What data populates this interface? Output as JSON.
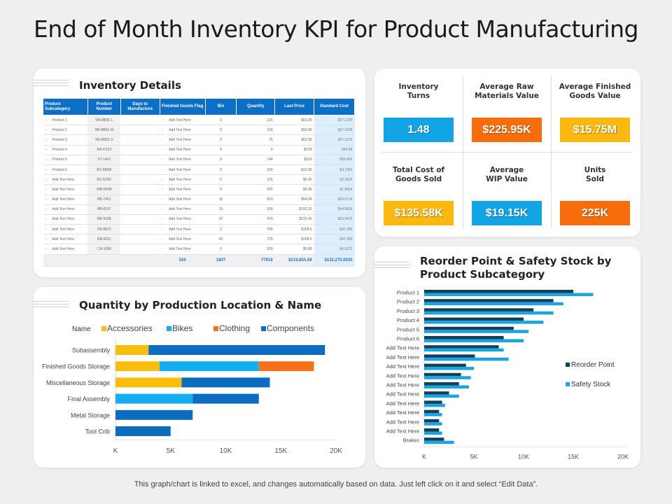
{
  "page": {
    "title": "End of Month Inventory KPI for Product Manufacturing",
    "footer": "This graph/chart is linked to excel, and changes automatically based on data. Just left click on it and select “Edit Data”."
  },
  "inventory": {
    "title": "Inventory Details",
    "columns": [
      "Product Subcategory",
      "Product Number",
      "Days to Manufacture",
      "Finished Goods Flag",
      "Bin",
      "Quantity",
      "Last Price",
      "Standard Cost"
    ],
    "rows": [
      {
        "subcategory": "Product 1",
        "number": "SB-M891-L",
        "days": "",
        "flag": "Add Text Here",
        "bin": "0",
        "quantity": "116",
        "price": "$60.99",
        "cost": "$37.1209"
      },
      {
        "subcategory": "Product 2",
        "number": "SB-M891-M",
        "days": "",
        "flag": "Add Text Here",
        "bin": "0",
        "quantity": "109",
        "price": "$60.99",
        "cost": "$37.1209"
      },
      {
        "subcategory": "Product 3",
        "number": "SB-M891-S",
        "days": "",
        "flag": "Add Text Here",
        "bin": "0",
        "quantity": "75",
        "price": "$60.99",
        "cost": "$37.1219"
      },
      {
        "subcategory": "Product 4",
        "number": "RA-H123",
        "days": "",
        "flag": "Add Text Here",
        "bin": "0",
        "quantity": "0",
        "price": "$125",
        "cost": "$44.88"
      },
      {
        "subcategory": "Product 5",
        "number": "ST-1401",
        "days": "",
        "flag": "Add Text Here",
        "bin": "0",
        "quantity": "144",
        "price": "$150",
        "cost": "$59.466"
      },
      {
        "subcategory": "Product 6",
        "number": "BC-M005",
        "days": "",
        "flag": "Add Text Here",
        "bin": "0",
        "quantity": "269",
        "price": "$10.99",
        "cost": "$3.7363"
      },
      {
        "subcategory": "Add Text Here",
        "number": "BC-R205",
        "days": "",
        "flag": "Add Text Here",
        "bin": "0",
        "quantity": "326",
        "price": "$8.95",
        "cost": "$3.3625"
      },
      {
        "subcategory": "Add Text Here",
        "number": "WB-H098",
        "days": "",
        "flag": "Add Text Here",
        "bin": "0",
        "quantity": "255",
        "price": "$4.99",
        "cost": "$1.8664"
      },
      {
        "subcategory": "Add Text Here",
        "number": "BB-7421",
        "days": "",
        "flag": "Add Text Here",
        "bin": "16",
        "quantity": "819",
        "price": "$54.99",
        "cost": "$23.9716"
      },
      {
        "subcategory": "Add Text Here",
        "number": "BB-8107",
        "days": "",
        "flag": "Add Text Here",
        "bin": "19",
        "quantity": "918",
        "price": "$102.25",
        "cost": "$44.9506"
      },
      {
        "subcategory": "Add Text Here",
        "number": "BB-9108",
        "days": "",
        "flag": "Add Text Here",
        "bin": "22",
        "quantity": "970",
        "price": "$122.49",
        "cost": "$53.9416"
      },
      {
        "subcategory": "Add Text Here",
        "number": "FB-9873",
        "days": "",
        "flag": "Add Text Here",
        "bin": "2",
        "quantity": "709",
        "price": "$108.5",
        "cost": "$47.286"
      },
      {
        "subcategory": "Add Text Here",
        "number": "RB-9231",
        "days": "",
        "flag": "Add Text Here",
        "bin": "43",
        "quantity": "725",
        "price": "$108.5",
        "cost": "$47.286"
      },
      {
        "subcategory": "Add Text Here",
        "number": "CA-1098",
        "days": "",
        "flag": "Add Text Here",
        "bin": "0",
        "quantity": "209",
        "price": "$9.88",
        "cost": "$6.9222"
      }
    ],
    "totals": {
      "flag": "529",
      "bin": "1807",
      "quantity": "77818",
      "price": "$219,855.59",
      "cost": "$132,275.0025"
    },
    "row_marker": "-"
  },
  "kpis": [
    {
      "label_1": "Inventory",
      "label_2": "Turns",
      "value": "1.48",
      "color": "#12a5e5"
    },
    {
      "label_1": "Average Raw",
      "label_2": "Materials Value",
      "value": "$225.95K",
      "color": "#f86d0b"
    },
    {
      "label_1": "Average Finished",
      "label_2": "Goods Value",
      "value": "$15.75M",
      "color": "#fbb80e"
    },
    {
      "label_1": "Total Cost of",
      "label_2": "Goods Sold",
      "value": "$135.58K",
      "color": "#fbb80e"
    },
    {
      "label_1": "Average",
      "label_2": "WIP Value",
      "value": "$19.15K",
      "color": "#12a5e5"
    },
    {
      "label_1": "Units",
      "label_2": "Sold",
      "value": "225K",
      "color": "#f86d0b"
    }
  ],
  "chart_data": [
    {
      "type": "bar",
      "orientation": "horizontal",
      "stacked": true,
      "title": "Quantity by Production Location & Name",
      "legend_title": "Name",
      "legend_position": "top",
      "categories": [
        "Subassembly",
        "Finished Goods Storage",
        "Miscellaneous Storage",
        "Final Assembly",
        "Metal Storage",
        "Tool Crib"
      ],
      "series": [
        {
          "name": "Accessories",
          "color": "#fbbd0d",
          "values": [
            3000,
            4000,
            6000,
            0,
            0,
            0
          ]
        },
        {
          "name": "Bikes",
          "color": "#13aef0",
          "values": [
            0,
            9000,
            0,
            7000,
            0,
            0
          ]
        },
        {
          "name": "Clothing",
          "color": "#f47318",
          "values": [
            0,
            5000,
            0,
            0,
            0,
            0
          ]
        },
        {
          "name": "Components",
          "color": "#0b6cc0",
          "values": [
            16000,
            0,
            8000,
            6000,
            7000,
            5000
          ]
        }
      ],
      "xlim": [
        0,
        20000
      ],
      "xticks": [
        "K",
        "5K",
        "10K",
        "15K",
        "20K"
      ],
      "xlabel": "",
      "ylabel": "",
      "grid": false
    },
    {
      "type": "bar",
      "orientation": "horizontal",
      "stacked": false,
      "title": "Reorder Point & Safety Stock by Product Subcategory",
      "legend_position": "right",
      "categories": [
        "Product 1",
        "Product 2",
        "Product 3",
        "Product 4",
        "Product 5",
        "Product 6",
        "Add Text Here",
        "Add Text Here",
        "Add Text Here",
        "Add Text Here",
        "Add Text Here",
        "Add Text Here",
        "Add Text Here",
        "Add Text Here",
        "Add Text Here",
        "Add Text Here",
        "Brakes"
      ],
      "series": [
        {
          "name": "Reorder Point",
          "color": "#143f5a",
          "values": [
            15000,
            13000,
            11000,
            10000,
            9000,
            8000,
            7500,
            5100,
            4200,
            3700,
            3500,
            2500,
            1800,
            1500,
            1500,
            1500,
            2000
          ]
        },
        {
          "name": "Safety Stock",
          "color": "#1aa4e0",
          "values": [
            17000,
            14000,
            13000,
            12000,
            10500,
            10000,
            8000,
            8500,
            5000,
            4700,
            4500,
            3500,
            2100,
            1800,
            1800,
            1800,
            3000
          ]
        }
      ],
      "xlim": [
        0,
        20000
      ],
      "xticks": [
        "K",
        "5K",
        "10K",
        "15K",
        "20K"
      ],
      "xlabel": "",
      "ylabel": "",
      "grid": false
    }
  ]
}
